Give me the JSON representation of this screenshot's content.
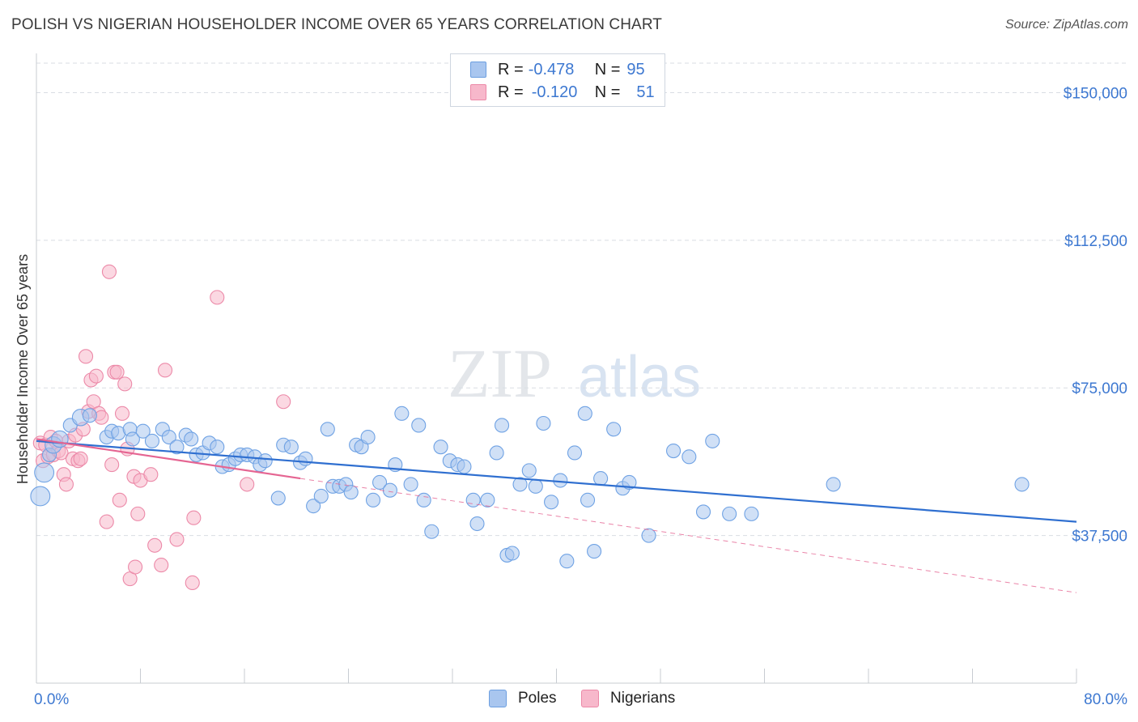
{
  "title": "POLISH VS NIGERIAN HOUSEHOLDER INCOME OVER 65 YEARS CORRELATION CHART",
  "source": "Source: ZipAtlas.com",
  "watermark": {
    "zip": "ZIP",
    "atlas": "atlas"
  },
  "legend": {
    "r_label": "R =",
    "n_label": "N =",
    "rows": [
      {
        "r": "-0.478",
        "n": "95",
        "color": "#a9c6ef",
        "border": "#6d9fe0"
      },
      {
        "r": "-0.120",
        "n": "51",
        "color": "#f7b8cb",
        "border": "#ec89a8"
      }
    ]
  },
  "bottom_legend": [
    "Poles",
    "Nigerians"
  ],
  "chart_data": {
    "type": "scatter",
    "title": "POLISH VS NIGERIAN HOUSEHOLDER INCOME OVER 65 YEARS CORRELATION CHART",
    "xlabel": "",
    "ylabel": "Householder Income Over 65 years",
    "xlim": [
      0,
      80
    ],
    "ylim": [
      0,
      157500
    ],
    "x_tick_labels": [
      "0.0%",
      "80.0%"
    ],
    "y_ticks": [
      37500,
      75000,
      112500,
      150000
    ],
    "y_tick_labels": [
      "$37,500",
      "$75,000",
      "$112,500",
      "$150,000"
    ],
    "grid": "horizontal dashed",
    "series": [
      {
        "name": "Poles",
        "color": "#6fa2e4",
        "fill": "#a9c6ef",
        "line_color": "#2f6fd0",
        "trend": {
          "x0": 0,
          "y0": 61500,
          "x1": 80,
          "y1": 41000
        },
        "points": [
          [
            0.3,
            47500,
            14
          ],
          [
            0.6,
            53500,
            14
          ],
          [
            1.0,
            58000,
            10
          ],
          [
            1.3,
            60500,
            12
          ],
          [
            1.8,
            62000,
            12
          ],
          [
            2.6,
            65500,
            10
          ],
          [
            3.4,
            67500,
            12
          ],
          [
            4.1,
            68000,
            10
          ],
          [
            5.4,
            62500,
            10
          ],
          [
            5.8,
            64000,
            10
          ],
          [
            6.3,
            63500,
            10
          ],
          [
            7.2,
            64500,
            10
          ],
          [
            7.4,
            62000,
            10
          ],
          [
            8.2,
            64000,
            10
          ],
          [
            8.9,
            61500,
            10
          ],
          [
            9.7,
            64500,
            10
          ],
          [
            10.2,
            62500,
            10
          ],
          [
            10.8,
            60000,
            10
          ],
          [
            11.5,
            63000,
            10
          ],
          [
            11.9,
            62000,
            10
          ],
          [
            12.3,
            58000,
            10
          ],
          [
            12.8,
            58500,
            10
          ],
          [
            13.3,
            61000,
            10
          ],
          [
            13.9,
            60000,
            10
          ],
          [
            14.3,
            55000,
            10
          ],
          [
            14.8,
            55500,
            10
          ],
          [
            15.3,
            57000,
            10
          ],
          [
            15.7,
            58000,
            10
          ],
          [
            16.2,
            58000,
            10
          ],
          [
            16.8,
            57500,
            10
          ],
          [
            17.2,
            55500,
            10
          ],
          [
            17.6,
            56500,
            10
          ],
          [
            18.6,
            47000,
            10
          ],
          [
            19.0,
            60500,
            10
          ],
          [
            19.6,
            60000,
            10
          ],
          [
            20.3,
            56000,
            10
          ],
          [
            20.7,
            57000,
            10
          ],
          [
            21.3,
            45000,
            10
          ],
          [
            21.9,
            47500,
            10
          ],
          [
            22.4,
            64500,
            10
          ],
          [
            22.8,
            50000,
            10
          ],
          [
            23.3,
            50000,
            10
          ],
          [
            23.8,
            50500,
            10
          ],
          [
            24.2,
            48500,
            10
          ],
          [
            24.6,
            60500,
            10
          ],
          [
            25.0,
            60000,
            10
          ],
          [
            25.5,
            62500,
            10
          ],
          [
            25.9,
            46500,
            10
          ],
          [
            26.4,
            51000,
            10
          ],
          [
            27.2,
            49000,
            10
          ],
          [
            27.6,
            55500,
            10
          ],
          [
            28.1,
            68500,
            10
          ],
          [
            28.8,
            50500,
            10
          ],
          [
            29.4,
            65500,
            10
          ],
          [
            29.8,
            46500,
            10
          ],
          [
            30.4,
            38500,
            10
          ],
          [
            31.1,
            60000,
            10
          ],
          [
            31.8,
            56500,
            10
          ],
          [
            32.4,
            55500,
            10
          ],
          [
            32.9,
            55000,
            10
          ],
          [
            33.6,
            46500,
            10
          ],
          [
            33.9,
            40500,
            10
          ],
          [
            34.7,
            46500,
            10
          ],
          [
            35.4,
            58500,
            10
          ],
          [
            35.8,
            65500,
            10
          ],
          [
            36.2,
            32500,
            10
          ],
          [
            36.6,
            33000,
            10
          ],
          [
            37.2,
            50500,
            10
          ],
          [
            37.9,
            54000,
            10
          ],
          [
            38.4,
            50000,
            10
          ],
          [
            39.0,
            66000,
            10
          ],
          [
            39.6,
            46000,
            10
          ],
          [
            40.3,
            51500,
            10
          ],
          [
            40.8,
            31000,
            10
          ],
          [
            41.4,
            58500,
            10
          ],
          [
            42.2,
            68500,
            10
          ],
          [
            42.4,
            46500,
            10
          ],
          [
            42.9,
            33500,
            10
          ],
          [
            43.4,
            52000,
            10
          ],
          [
            44.4,
            64500,
            10
          ],
          [
            45.1,
            49500,
            10
          ],
          [
            45.6,
            51000,
            10
          ],
          [
            47.1,
            37500,
            10
          ],
          [
            49.0,
            59000,
            10
          ],
          [
            50.2,
            57500,
            10
          ],
          [
            51.3,
            43500,
            10
          ],
          [
            52.0,
            61500,
            10
          ],
          [
            53.3,
            43000,
            10
          ],
          [
            55.0,
            43000,
            10
          ],
          [
            61.3,
            50500,
            10
          ],
          [
            75.8,
            50500,
            10
          ]
        ]
      },
      {
        "name": "Nigerians",
        "color": "#ec89a8",
        "fill": "#f7b8cb",
        "line_color": "#e56592",
        "trend": {
          "x0": 0,
          "y0": 62000,
          "x1": 20.3,
          "y1": 52000
        },
        "trend_dashed": {
          "x0": 20.3,
          "y0": 52000,
          "x1": 80,
          "y1": 23000
        },
        "points": [
          [
            0.3,
            61000,
            10
          ],
          [
            0.5,
            56500,
            10
          ],
          [
            0.7,
            60500,
            10
          ],
          [
            0.9,
            57500,
            10
          ],
          [
            1.1,
            62500,
            10
          ],
          [
            1.3,
            58000,
            10
          ],
          [
            1.5,
            61500,
            10
          ],
          [
            1.7,
            59000,
            10
          ],
          [
            1.9,
            58500,
            10
          ],
          [
            2.1,
            53000,
            10
          ],
          [
            2.3,
            50500,
            10
          ],
          [
            2.5,
            61500,
            10
          ],
          [
            2.8,
            57000,
            10
          ],
          [
            3.0,
            63000,
            10
          ],
          [
            3.2,
            56500,
            10
          ],
          [
            3.4,
            57000,
            10
          ],
          [
            3.6,
            64500,
            10
          ],
          [
            3.8,
            83000,
            10
          ],
          [
            4.0,
            69000,
            10
          ],
          [
            4.2,
            77000,
            10
          ],
          [
            4.4,
            71500,
            10
          ],
          [
            4.6,
            78000,
            10
          ],
          [
            4.8,
            68500,
            10
          ],
          [
            5.0,
            67500,
            10
          ],
          [
            5.4,
            41000,
            10
          ],
          [
            5.6,
            104500,
            10
          ],
          [
            5.8,
            55500,
            10
          ],
          [
            6.0,
            79000,
            10
          ],
          [
            6.2,
            79000,
            10
          ],
          [
            6.4,
            46500,
            10
          ],
          [
            6.6,
            68500,
            10
          ],
          [
            6.8,
            76000,
            10
          ],
          [
            7.0,
            59500,
            10
          ],
          [
            7.2,
            26500,
            10
          ],
          [
            7.5,
            52500,
            10
          ],
          [
            7.6,
            29500,
            10
          ],
          [
            7.8,
            43000,
            10
          ],
          [
            8.0,
            51500,
            10
          ],
          [
            8.8,
            53000,
            10
          ],
          [
            9.1,
            35000,
            10
          ],
          [
            9.6,
            30000,
            10
          ],
          [
            9.9,
            79500,
            10
          ],
          [
            10.8,
            36500,
            10
          ],
          [
            12.1,
            42000,
            10
          ],
          [
            12.0,
            25500,
            10
          ],
          [
            13.9,
            98000,
            10
          ],
          [
            16.2,
            50500,
            10
          ],
          [
            19.0,
            71500,
            10
          ]
        ]
      }
    ]
  }
}
